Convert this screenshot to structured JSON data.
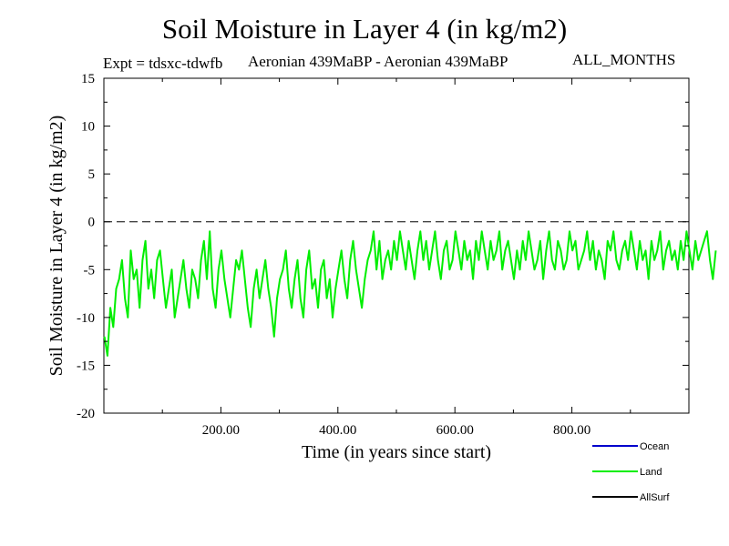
{
  "header": {
    "title": "Soil Moisture in Layer 4 (in kg/m2)",
    "expt": "Expt = tdsxc-tdwfb",
    "subtitle": "Aeronian 439MaBP - Aeronian 439MaBP",
    "months": "ALL_MONTHS"
  },
  "chart_data": {
    "type": "line",
    "title": "Soil Moisture in Layer 4 (in kg/m2)",
    "xlabel": "Time (in years since start)",
    "ylabel": "Soil Moisture in Layer 4 (in kg/m2)",
    "xlim": [
      0,
      1000
    ],
    "ylim": [
      -20,
      15
    ],
    "x_ticks": [
      200,
      400,
      600,
      800
    ],
    "x_tick_labels": [
      "200.00",
      "400.00",
      "600.00",
      "800.00"
    ],
    "y_ticks": [
      -20,
      -15,
      -10,
      -5,
      0,
      5,
      10,
      15
    ],
    "y_tick_labels": [
      "-20",
      "-15",
      "-10",
      "-5",
      "0",
      "5",
      "10",
      "15"
    ],
    "reference_line": 0,
    "legend": [
      {
        "name": "Ocean",
        "color": "#0000cc"
      },
      {
        "name": "Land",
        "color": "#00ee00"
      },
      {
        "name": "AllSurf",
        "color": "#000000"
      }
    ],
    "series": [
      {
        "name": "Land",
        "color": "#00ee00",
        "x_start": 1,
        "x_step": 5,
        "values": [
          -12,
          -14,
          -9,
          -11,
          -7,
          -6,
          -4,
          -8,
          -10,
          -3,
          -6,
          -5,
          -9,
          -4,
          -2,
          -7,
          -5,
          -8,
          -4,
          -3,
          -6,
          -9,
          -7,
          -5,
          -10,
          -8,
          -6,
          -4,
          -7,
          -9,
          -5,
          -6,
          -8,
          -4,
          -2,
          -6,
          -1,
          -7,
          -9,
          -5,
          -3,
          -6,
          -8,
          -10,
          -7,
          -4,
          -5,
          -3,
          -6,
          -9,
          -11,
          -7,
          -5,
          -8,
          -6,
          -4,
          -7,
          -9,
          -12,
          -8,
          -6,
          -5,
          -3,
          -7,
          -9,
          -6,
          -4,
          -8,
          -10,
          -5,
          -3,
          -7,
          -6,
          -9,
          -5,
          -4,
          -8,
          -6,
          -10,
          -7,
          -5,
          -3,
          -6,
          -8,
          -4,
          -2,
          -5,
          -7,
          -9,
          -6,
          -4,
          -3,
          -1,
          -5,
          -2,
          -6,
          -4,
          -3,
          -5,
          -2,
          -4,
          -1,
          -3,
          -5,
          -2,
          -4,
          -6,
          -3,
          -1,
          -4,
          -2,
          -5,
          -3,
          -1,
          -4,
          -6,
          -3,
          -2,
          -5,
          -4,
          -1,
          -3,
          -5,
          -2,
          -4,
          -3,
          -6,
          -2,
          -4,
          -1,
          -3,
          -5,
          -2,
          -4,
          -3,
          -1,
          -5,
          -3,
          -2,
          -4,
          -6,
          -3,
          -5,
          -2,
          -4,
          -1,
          -3,
          -5,
          -4,
          -2,
          -6,
          -3,
          -1,
          -4,
          -5,
          -2,
          -3,
          -5,
          -4,
          -1,
          -3,
          -2,
          -5,
          -4,
          -3,
          -1,
          -4,
          -2,
          -5,
          -3,
          -4,
          -6,
          -2,
          -3,
          -1,
          -4,
          -5,
          -3,
          -2,
          -4,
          -1,
          -3,
          -5,
          -2,
          -4,
          -3,
          -6,
          -2,
          -4,
          -3,
          -1,
          -5,
          -3,
          -2,
          -4,
          -3,
          -5,
          -2,
          -4,
          -1,
          -3,
          -5,
          -2,
          -4,
          -3,
          -2,
          -1,
          -4,
          -6,
          -3
        ]
      }
    ]
  }
}
